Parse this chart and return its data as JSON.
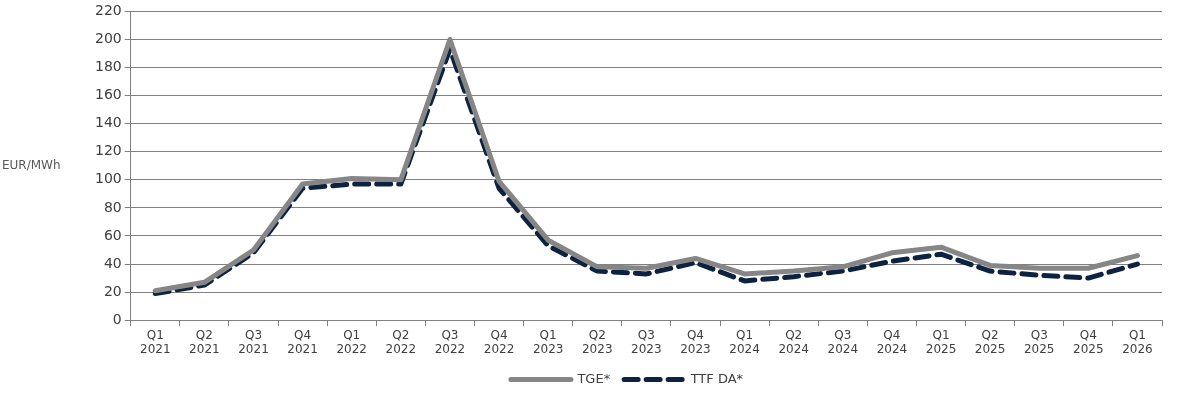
{
  "chart_data": {
    "type": "line",
    "ylabel": "EUR/MWh",
    "categories": [
      "Q1 2021",
      "Q2 2021",
      "Q3 2021",
      "Q4 2021",
      "Q1 2022",
      "Q2 2022",
      "Q3 2022",
      "Q4 2022",
      "Q1 2023",
      "Q2 2023",
      "Q3 2023",
      "Q4 2023",
      "Q1 2024",
      "Q2 2024",
      "Q3 2024",
      "Q4 2024",
      "Q1 2025",
      "Q2 2025",
      "Q3 2025",
      "Q4 2025",
      "Q1 2026"
    ],
    "series": [
      {
        "name": "TGE*",
        "color": "#868686",
        "line_style": "solid",
        "values": [
          21,
          27,
          50,
          97,
          101,
          100,
          200,
          99,
          57,
          38,
          37,
          44,
          33,
          35,
          38,
          48,
          52,
          39,
          37,
          37,
          46
        ]
      },
      {
        "name": "TTF DA*",
        "color": "#0d2240",
        "line_style": "dashed",
        "values": [
          19,
          25,
          48,
          94,
          97,
          97,
          193,
          94,
          53,
          35,
          33,
          41,
          28,
          31,
          35,
          42,
          47,
          35,
          32,
          30,
          40
        ]
      }
    ],
    "ylim": [
      0,
      220
    ],
    "yticks": [
      0,
      20,
      40,
      60,
      80,
      100,
      120,
      140,
      160,
      180,
      200,
      220
    ],
    "grid": "y",
    "legend": "bottom",
    "marker": "none"
  }
}
